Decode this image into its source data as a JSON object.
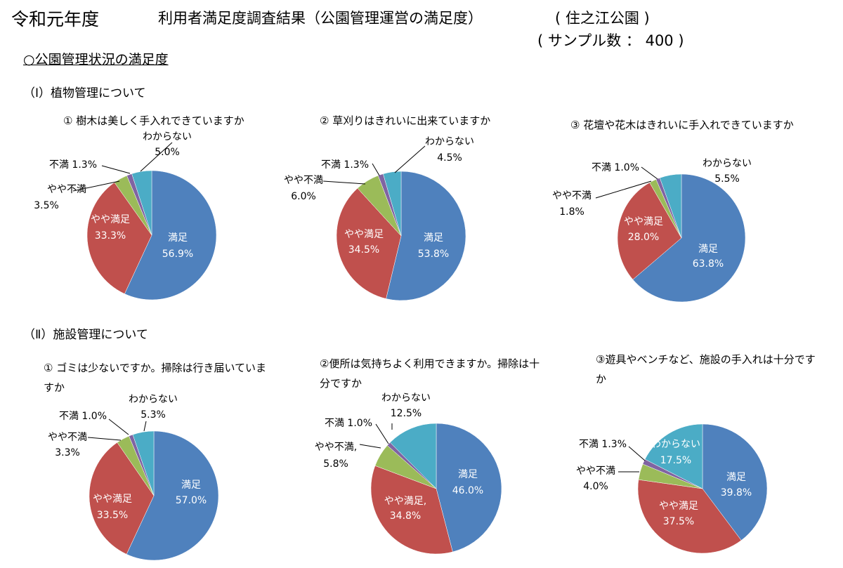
{
  "header": {
    "year": "令和元年度",
    "title": "利用者満足度調査結果（公園管理運営の満足度）",
    "park": "(  住之江公園  )",
    "sample": "( サンプル数 ：   400  )"
  },
  "section_title": "○公園管理状況の満足度",
  "groups": [
    "（Ⅰ）植物管理について",
    "（Ⅱ）施設管理について"
  ],
  "colors": {
    "満足": "#4F81BD",
    "やや満足": "#C0504D",
    "やや不満": "#9BBB59",
    "不満": "#8064A2",
    "わからない": "#4BACC6"
  },
  "chart_data": [
    {
      "type": "pie",
      "title": "① 樹木は美しく手入れできていますか",
      "categories": [
        "満足",
        "やや満足",
        "やや不満",
        "不満",
        "わからない"
      ],
      "values": [
        56.9,
        33.3,
        3.5,
        1.3,
        5.0
      ],
      "labels": [
        "満足",
        "やや満足",
        "やや不満",
        "不満 1.3%",
        "わからない"
      ],
      "value_labels": [
        "56.9%",
        "33.3%",
        "3.5%",
        "",
        "5.0%"
      ]
    },
    {
      "type": "pie",
      "title": "② 草刈りはきれいに出来ていますか",
      "categories": [
        "満足",
        "やや満足",
        "やや不満",
        "不満",
        "わからない"
      ],
      "values": [
        53.8,
        34.5,
        6.0,
        1.3,
        4.5
      ],
      "labels": [
        "満足",
        "やや満足",
        "やや不満",
        "不満 1.3%",
        "わからない"
      ],
      "value_labels": [
        "53.8%",
        "34.5%",
        "6.0%",
        "",
        "4.5%"
      ]
    },
    {
      "type": "pie",
      "title": "③ 花壇や花木はきれいに手入れできていますか",
      "categories": [
        "満足",
        "やや満足",
        "やや不満",
        "不満",
        "わからない"
      ],
      "values": [
        63.8,
        28.0,
        1.8,
        1.0,
        5.5
      ],
      "labels": [
        "満足",
        "やや満足",
        "やや不満",
        "不満 1.0%",
        "わからない"
      ],
      "value_labels": [
        "63.8%",
        "28.0%",
        "1.8%",
        "",
        "5.5%"
      ]
    },
    {
      "type": "pie",
      "title": "① ゴミは少ないですか。掃除は行き届いていますか",
      "categories": [
        "満足",
        "やや満足",
        "やや不満",
        "不満",
        "わからない"
      ],
      "values": [
        57.0,
        33.5,
        3.3,
        1.0,
        5.3
      ],
      "labels": [
        "満足",
        "やや満足",
        "やや不満",
        "不満 1.0%",
        "わからない"
      ],
      "value_labels": [
        "57.0%",
        "33.5%",
        "3.3%",
        "",
        "5.3%"
      ]
    },
    {
      "type": "pie",
      "title": "②便所は気持ちよく利用できますか。掃除は十分ですか",
      "categories": [
        "満足",
        "やや満足",
        "やや不満",
        "不満",
        "わからない"
      ],
      "values": [
        46.0,
        34.8,
        5.8,
        1.0,
        12.5
      ],
      "labels": [
        "満足",
        "やや満足,",
        "やや不満,",
        "不満 1.0%",
        "わからない"
      ],
      "value_labels": [
        "46.0%",
        "34.8%",
        "5.8%",
        "",
        "12.5%"
      ]
    },
    {
      "type": "pie",
      "title": "③遊具やベンチなど、施設の手入れは十分ですか",
      "categories": [
        "満足",
        "やや満足",
        "やや不満",
        "不満",
        "わからない"
      ],
      "values": [
        39.8,
        37.5,
        4.0,
        1.3,
        17.5
      ],
      "labels": [
        "満足",
        "やや満足",
        "やや不満",
        "不満 1.3%",
        "わからない"
      ],
      "value_labels": [
        "39.8%",
        "37.5%",
        "4.0%",
        "",
        "17.5%"
      ]
    }
  ]
}
